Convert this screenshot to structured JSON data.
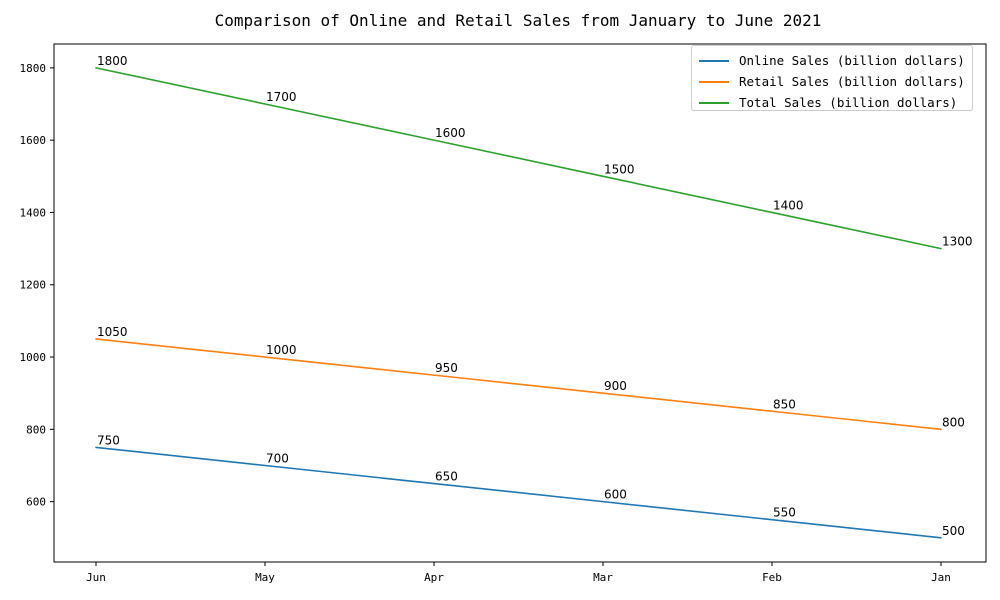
{
  "chart_data": {
    "type": "line",
    "title": "Comparison of Online and Retail Sales from January to June 2021",
    "xlabel": "",
    "ylabel": "",
    "categories": [
      "Jun",
      "May",
      "Apr",
      "Mar",
      "Feb",
      "Jan"
    ],
    "ylim": [
      433,
      1866
    ],
    "yticks": [
      600,
      800,
      1000,
      1200,
      1400,
      1600,
      1800
    ],
    "grid": false,
    "legend_position": "top-right",
    "series": [
      {
        "name": "Online Sales (billion dollars)",
        "color": "#1f77b4",
        "values": [
          750,
          700,
          650,
          600,
          550,
          500
        ]
      },
      {
        "name": "Retail Sales (billion dollars)",
        "color": "#ff7f0e",
        "values": [
          1050,
          1000,
          950,
          900,
          850,
          800
        ]
      },
      {
        "name": "Total Sales (billion dollars)",
        "color": "#2ca02c",
        "values": [
          1800,
          1700,
          1600,
          1500,
          1400,
          1300
        ]
      }
    ]
  }
}
